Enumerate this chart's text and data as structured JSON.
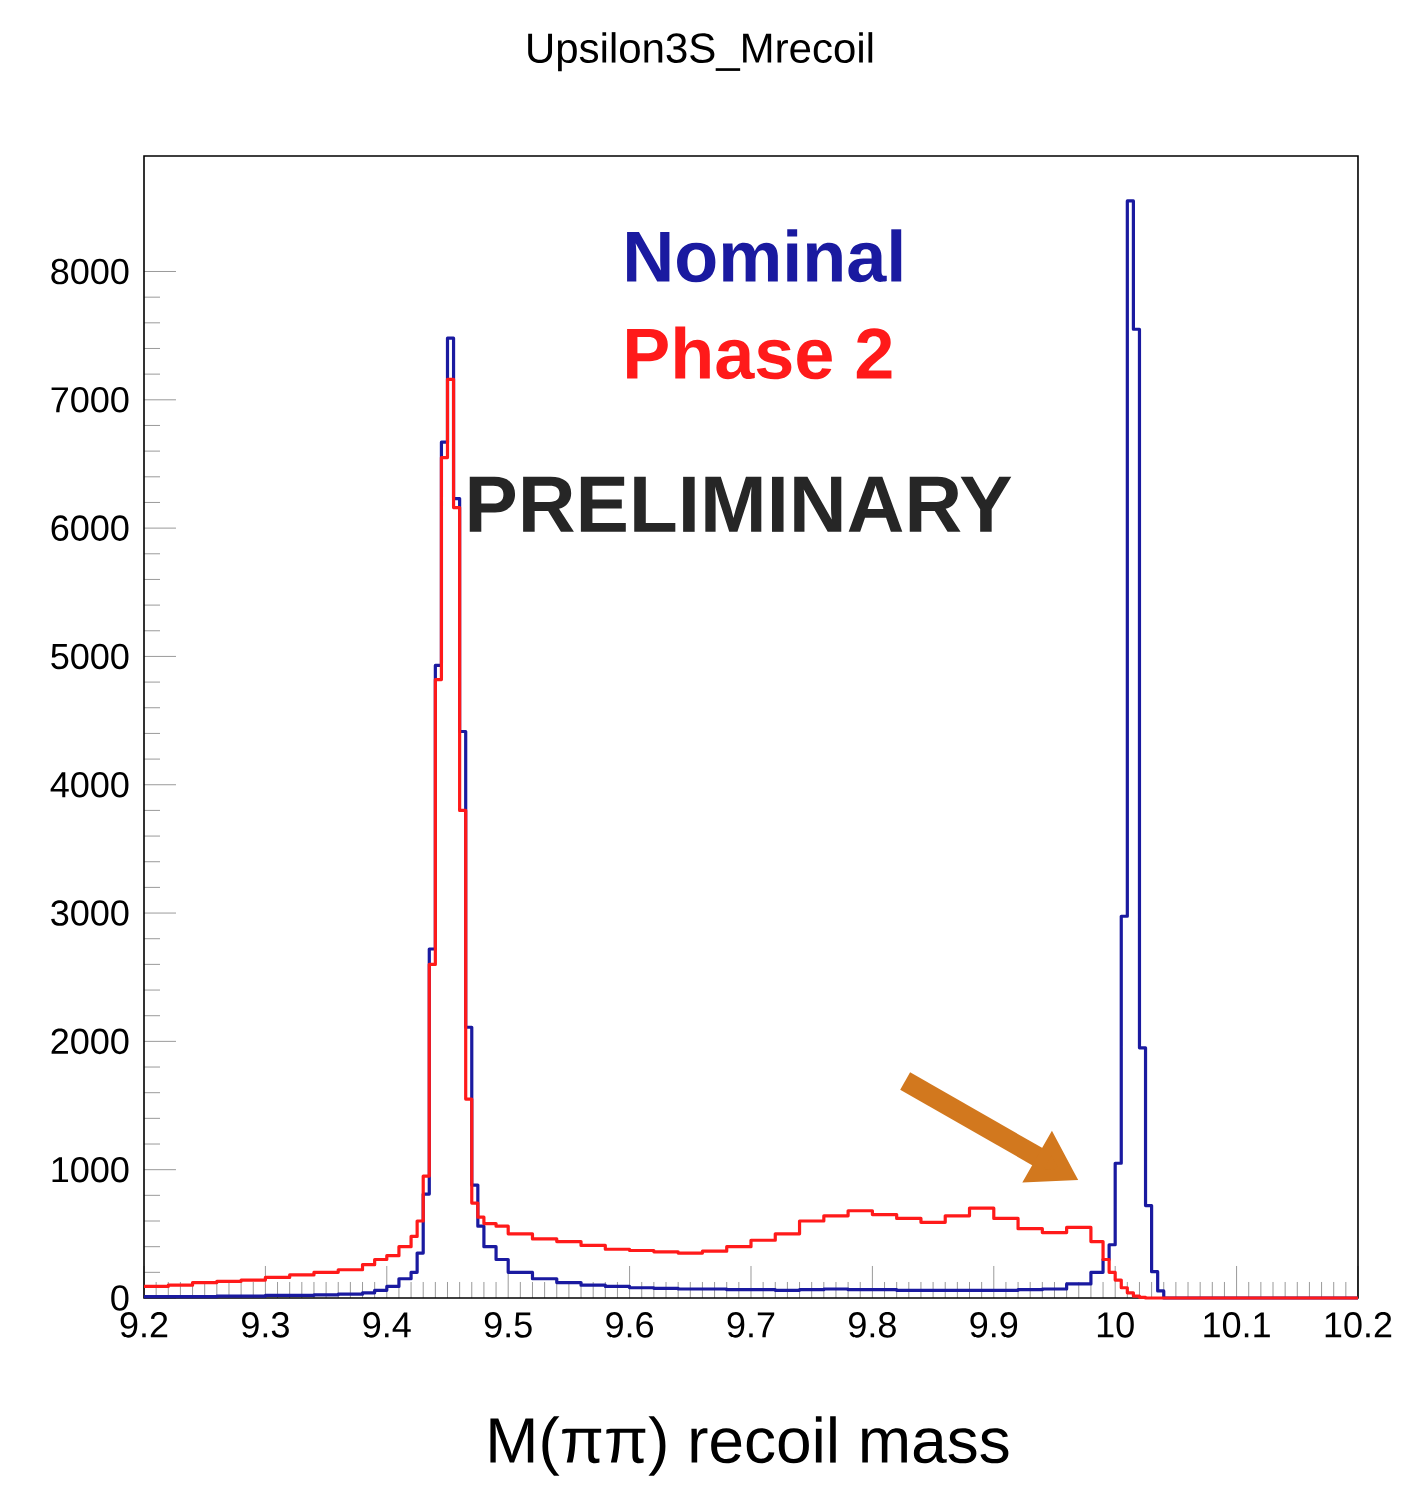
{
  "chart_data": {
    "type": "histogram",
    "title": "Upsilon3S_Mrecoil",
    "xlabel": "M(ππ) recoil mass",
    "bins": [
      9.2,
      9.22,
      9.24,
      9.26,
      9.28,
      9.3,
      9.32,
      9.34,
      9.36,
      9.38,
      9.39,
      9.4,
      9.41,
      9.42,
      9.425,
      9.43,
      9.435,
      9.44,
      9.445,
      9.45,
      9.455,
      9.46,
      9.465,
      9.47,
      9.475,
      9.48,
      9.49,
      9.5,
      9.52,
      9.54,
      9.56,
      9.58,
      9.6,
      9.62,
      9.64,
      9.66,
      9.68,
      9.7,
      9.72,
      9.74,
      9.76,
      9.78,
      9.8,
      9.82,
      9.84,
      9.86,
      9.88,
      9.9,
      9.92,
      9.94,
      9.96,
      9.98,
      9.99,
      9.995,
      10.0,
      10.005,
      10.01,
      10.015,
      10.02,
      10.025,
      10.03,
      10.035,
      10.04,
      10.08,
      10.12,
      10.16,
      10.2
    ],
    "series": [
      {
        "name": "Nominal",
        "color": "#1a1aa0",
        "values": [
          10,
          10,
          10,
          15,
          15,
          20,
          20,
          25,
          30,
          40,
          60,
          90,
          150,
          200,
          350,
          810,
          2720,
          4930,
          6670,
          7480,
          6230,
          4415,
          2110,
          880,
          560,
          400,
          300,
          200,
          150,
          120,
          100,
          90,
          80,
          75,
          70,
          70,
          65,
          65,
          60,
          65,
          70,
          65,
          65,
          60,
          60,
          60,
          60,
          60,
          65,
          70,
          110,
          200,
          300,
          415,
          1050,
          2975,
          8550,
          7550,
          1950,
          720,
          205,
          55,
          0,
          0,
          0,
          0
        ]
      },
      {
        "name": "Phase 2",
        "color": "#ff1a1a",
        "values": [
          90,
          100,
          120,
          130,
          140,
          160,
          180,
          200,
          220,
          260,
          300,
          330,
          400,
          480,
          600,
          950,
          2600,
          4820,
          6550,
          7160,
          6160,
          3800,
          1550,
          740,
          630,
          580,
          560,
          500,
          460,
          440,
          410,
          380,
          370,
          360,
          350,
          365,
          400,
          450,
          500,
          600,
          640,
          680,
          650,
          620,
          590,
          640,
          700,
          620,
          540,
          510,
          550,
          440,
          300,
          200,
          140,
          80,
          40,
          15,
          5,
          0,
          0,
          0,
          0,
          0,
          0,
          0
        ]
      }
    ],
    "annotations": [
      "PRELIMINARY"
    ],
    "xlim": [
      9.2,
      10.2
    ],
    "xticks": [
      9.2,
      9.3,
      9.4,
      9.5,
      9.6,
      9.7,
      9.8,
      9.9,
      10,
      10.1,
      10.2
    ],
    "ylim": [
      0,
      8900
    ],
    "yticks": [
      0,
      1000,
      2000,
      3000,
      4000,
      5000,
      6000,
      7000,
      8000
    ],
    "legend": "top"
  }
}
